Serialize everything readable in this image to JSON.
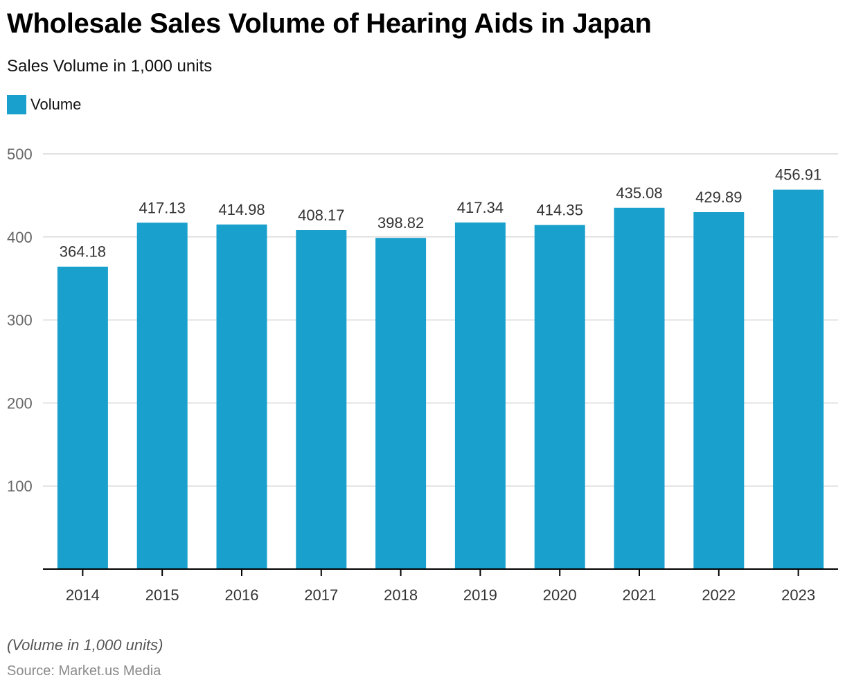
{
  "header": {
    "title": "Wholesale Sales Volume of Hearing Aids in Japan",
    "subtitle": "Sales Volume in 1,000 units"
  },
  "footer": {
    "note": "(Volume in 1,000 units)",
    "source": "Source: Market.us Media"
  },
  "colors": {
    "bar": "#1aa0cc",
    "grid": "#d9d9d9",
    "axis": "#000000"
  },
  "chart_data": {
    "type": "bar",
    "title": "Wholesale Sales Volume of Hearing Aids in Japan",
    "subtitle": "Sales Volume in 1,000 units",
    "xlabel": "",
    "ylabel": "",
    "categories": [
      "2014",
      "2015",
      "2016",
      "2017",
      "2018",
      "2019",
      "2020",
      "2021",
      "2022",
      "2023"
    ],
    "series": [
      {
        "name": "Volume",
        "values": [
          364.18,
          417.13,
          414.98,
          408.17,
          398.82,
          417.34,
          414.35,
          435.08,
          429.89,
          456.91
        ]
      }
    ],
    "data_labels": [
      "364.18",
      "417.13",
      "414.98",
      "408.17",
      "398.82",
      "417.34",
      "414.35",
      "435.08",
      "429.89",
      "456.91"
    ],
    "ylim": [
      0,
      500
    ],
    "yticks": [
      100,
      200,
      300,
      400,
      500
    ],
    "ytick_labels": [
      "100",
      "200",
      "300",
      "400",
      "500"
    ],
    "grid": true,
    "legend": {
      "entries": [
        "Volume"
      ],
      "position": "top-left"
    }
  }
}
